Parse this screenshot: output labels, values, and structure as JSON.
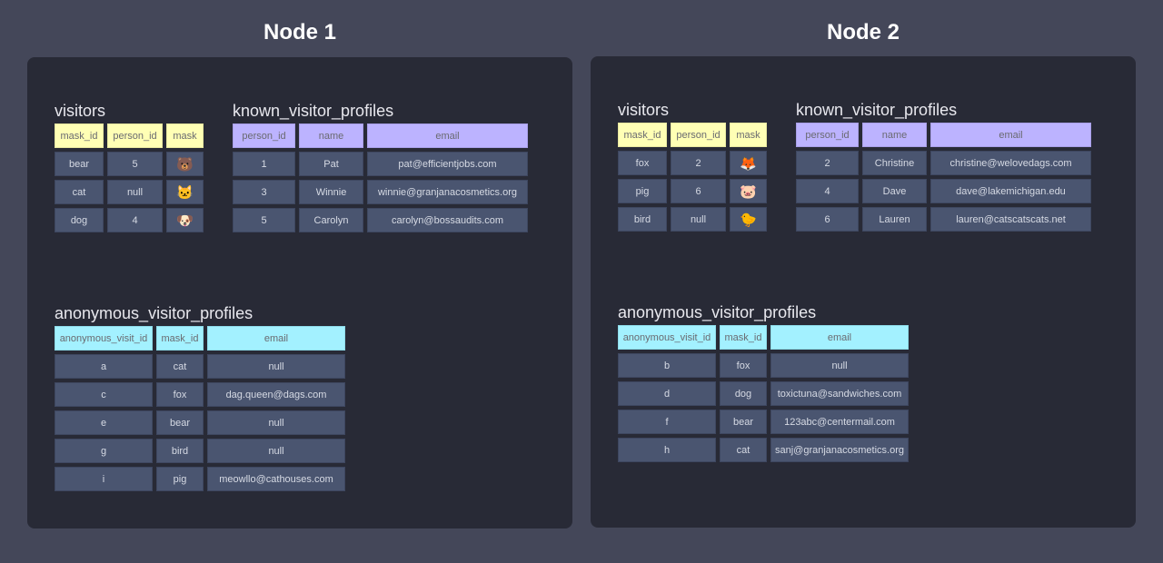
{
  "nodes": [
    {
      "title": "Node 1",
      "visitors": {
        "name": "visitors",
        "columns": [
          "mask_id",
          "person_id",
          "mask"
        ],
        "rows": [
          [
            "bear",
            "5",
            "🐻"
          ],
          [
            "cat",
            "null",
            "🐱"
          ],
          [
            "dog",
            "4",
            "🐶"
          ]
        ]
      },
      "known_visitor_profiles": {
        "name": "known_visitor_profiles",
        "columns": [
          "person_id",
          "name",
          "email"
        ],
        "rows": [
          [
            "1",
            "Pat",
            "pat@efficientjobs.com"
          ],
          [
            "3",
            "Winnie",
            "winnie@granjanacosmetics.org"
          ],
          [
            "5",
            "Carolyn",
            "carolyn@bossaudits.com"
          ]
        ]
      },
      "anonymous_visitor_profiles": {
        "name": "anonymous_visitor_profiles",
        "columns": [
          "anonymous_visit_id",
          "mask_id",
          "email"
        ],
        "rows": [
          [
            "a",
            "cat",
            "null"
          ],
          [
            "c",
            "fox",
            "dag.queen@dags.com"
          ],
          [
            "e",
            "bear",
            "null"
          ],
          [
            "g",
            "bird",
            "null"
          ],
          [
            "i",
            "pig",
            "meowllo@cathouses.com"
          ]
        ]
      }
    },
    {
      "title": "Node 2",
      "visitors": {
        "name": "visitors",
        "columns": [
          "mask_id",
          "person_id",
          "mask"
        ],
        "rows": [
          [
            "fox",
            "2",
            "🦊"
          ],
          [
            "pig",
            "6",
            "🐷"
          ],
          [
            "bird",
            "null",
            "🐤"
          ]
        ]
      },
      "known_visitor_profiles": {
        "name": "known_visitor_profiles",
        "columns": [
          "person_id",
          "name",
          "email"
        ],
        "rows": [
          [
            "2",
            "Christine",
            "christine@welovedags.com"
          ],
          [
            "4",
            "Dave",
            "dave@lakemichigan.edu"
          ],
          [
            "6",
            "Lauren",
            "lauren@catscatscats.net"
          ]
        ]
      },
      "anonymous_visitor_profiles": {
        "name": "anonymous_visitor_profiles",
        "columns": [
          "anonymous_visit_id",
          "mask_id",
          "email"
        ],
        "rows": [
          [
            "b",
            "fox",
            "null"
          ],
          [
            "d",
            "dog",
            "toxictuna@sandwiches.com"
          ],
          [
            "f",
            "bear",
            "123abc@centermail.com"
          ],
          [
            "h",
            "cat",
            "sanj@granjanacosmetics.org"
          ]
        ]
      }
    }
  ],
  "colors": {
    "visitors_header": "#ffffb5",
    "known_header": "#bcb3ff",
    "anon_header": "#a3f1ff",
    "cell": "#4a5570",
    "panel": "#282a36",
    "background": "#444759"
  }
}
